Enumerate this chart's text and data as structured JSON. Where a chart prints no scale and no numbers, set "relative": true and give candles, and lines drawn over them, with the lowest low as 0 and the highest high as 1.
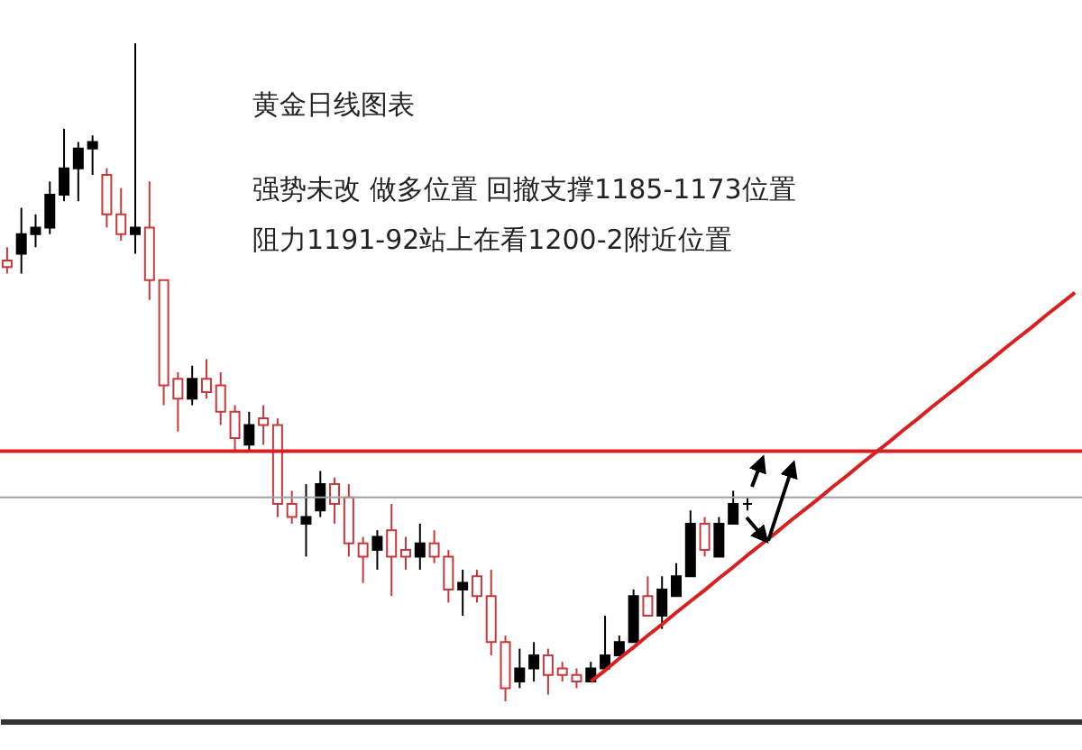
{
  "chart_data": {
    "type": "candlestick",
    "title": "黄金日线图表",
    "annotations": [
      "强势未改  做多位置 回撤支撑1185-1173位置",
      "阻力1191-92站上在看1200-2附近位置"
    ],
    "relative": true,
    "categories": [
      null,
      null,
      null,
      null,
      null,
      null,
      null,
      null,
      null,
      null,
      null,
      null,
      null,
      null,
      null,
      null,
      null,
      null,
      null,
      null,
      null,
      null,
      null,
      null,
      null,
      null,
      null,
      null,
      null,
      null,
      null,
      null,
      null,
      null,
      null,
      null,
      null,
      null,
      null,
      null,
      null,
      null,
      null,
      null,
      null,
      null,
      null,
      null,
      null,
      null,
      null,
      null,
      null,
      null,
      null,
      null,
      null,
      null,
      null,
      null,
      null,
      null,
      null,
      null,
      null,
      null,
      null,
      null,
      null,
      null,
      null,
      null,
      null,
      null,
      null,
      null
    ],
    "ohlc": [
      [
        0.67,
        0.69,
        0.65,
        0.66
      ],
      [
        0.68,
        0.75,
        0.65,
        0.71
      ],
      [
        0.71,
        0.74,
        0.69,
        0.72
      ],
      [
        0.72,
        0.79,
        0.71,
        0.77
      ],
      [
        0.77,
        0.87,
        0.76,
        0.81
      ],
      [
        0.81,
        0.85,
        0.76,
        0.84
      ],
      [
        0.84,
        0.86,
        0.8,
        0.85
      ],
      [
        0.8,
        0.81,
        0.72,
        0.74
      ],
      [
        0.74,
        0.78,
        0.7,
        0.71
      ],
      [
        0.71,
        1,
        0.68,
        0.72
      ],
      [
        0.72,
        0.79,
        0.61,
        0.64
      ],
      [
        0.64,
        0.64,
        0.45,
        0.48
      ],
      [
        0.49,
        0.5,
        0.41,
        0.46
      ],
      [
        0.46,
        0.51,
        0.45,
        0.49
      ],
      [
        0.49,
        0.52,
        0.46,
        0.47
      ],
      [
        0.48,
        0.5,
        0.42,
        0.44
      ],
      [
        0.44,
        0.45,
        0.38,
        0.4
      ],
      [
        0.39,
        0.44,
        0.38,
        0.42
      ],
      [
        0.43,
        0.45,
        0.39,
        0.42
      ],
      [
        0.42,
        0.43,
        0.28,
        0.3
      ],
      [
        0.3,
        0.32,
        0.27,
        0.28
      ],
      [
        0.27,
        0.33,
        0.22,
        0.28
      ],
      [
        0.29,
        0.35,
        0.28,
        0.33
      ],
      [
        0.33,
        0.34,
        0.27,
        0.3
      ],
      [
        0.31,
        0.33,
        0.22,
        0.24
      ],
      [
        0.24,
        0.25,
        0.18,
        0.22
      ],
      [
        0.23,
        0.26,
        0.2,
        0.25
      ],
      [
        0.26,
        0.3,
        0.16,
        0.22
      ],
      [
        0.23,
        0.25,
        0.2,
        0.22
      ],
      [
        0.22,
        0.27,
        0.2,
        0.24
      ],
      [
        0.24,
        0.26,
        0.21,
        0.22
      ],
      [
        0.22,
        0.23,
        0.15,
        0.17
      ],
      [
        0.17,
        0.2,
        0.13,
        0.18
      ],
      [
        0.19,
        0.2,
        0.15,
        0.16
      ],
      [
        0.16,
        0.2,
        0.07,
        0.09
      ],
      [
        0.09,
        0.1,
        0,
        0.02
      ],
      [
        0.03,
        0.08,
        0.02,
        0.05
      ],
      [
        0.05,
        0.09,
        0.03,
        0.07
      ],
      [
        0.07,
        0.08,
        0.01,
        0.04
      ],
      [
        0.05,
        0.06,
        0.03,
        0.04
      ],
      [
        0.04,
        0.05,
        0.02,
        0.03
      ],
      [
        0.03,
        0.06,
        0.03,
        0.05
      ],
      [
        0.05,
        0.13,
        0.05,
        0.07
      ],
      [
        0.07,
        0.1,
        0.07,
        0.09
      ],
      [
        0.09,
        0.17,
        0.09,
        0.16
      ],
      [
        0.16,
        0.19,
        0.13,
        0.13
      ],
      [
        0.13,
        0.19,
        0.11,
        0.17
      ],
      [
        0.16,
        0.21,
        0.16,
        0.19
      ],
      [
        0.19,
        0.29,
        0.19,
        0.27
      ],
      [
        0.27,
        0.28,
        0.22,
        0.23
      ],
      [
        0.22,
        0.28,
        0.22,
        0.27
      ],
      [
        0.27,
        0.32,
        0.27,
        0.3
      ],
      [
        0.3,
        0.31,
        0.29,
        0.3
      ],
      null,
      null,
      null,
      null,
      null,
      null,
      null,
      null,
      null,
      null,
      null,
      null,
      null,
      null,
      null,
      null,
      null,
      null,
      null,
      null,
      null,
      null,
      null
    ],
    "colors": [
      "#c8383a",
      "#000000",
      "#000000",
      "#000000",
      "#000000",
      "#000000",
      "#000000",
      "#c8383a",
      "#c8383a",
      "#000000",
      "#c8383a",
      "#c8383a",
      "#c8383a",
      "#000000",
      "#c8383a",
      "#c8383a",
      "#c8383a",
      "#000000",
      "#c8383a",
      "#c8383a",
      "#c8383a",
      "#000000",
      "#000000",
      "#c8383a",
      "#c8383a",
      "#c8383a",
      "#000000",
      "#c8383a",
      "#c8383a",
      "#000000",
      "#c8383a",
      "#c8383a",
      "#000000",
      "#c8383a",
      "#c8383a",
      "#c8383a",
      "#000000",
      "#000000",
      "#c8383a",
      "#c8383a",
      "#c8383a",
      "#000000",
      "#000000",
      "#000000",
      "#000000",
      "#c8383a",
      "#000000",
      "#000000",
      "#000000",
      "#c8383a",
      "#000000",
      "#000000",
      "#000000",
      null,
      null,
      null,
      null,
      null,
      null,
      null,
      null,
      null,
      null,
      null,
      null,
      null,
      null,
      null,
      null,
      null,
      null,
      null,
      null,
      null,
      null,
      null
    ],
    "series": [
      {
        "type": "line",
        "color": "#d92020",
        "values": [
          null,
          null,
          null,
          null,
          null,
          null,
          null,
          null,
          null,
          null,
          null,
          null,
          null,
          null,
          null,
          null,
          null,
          null,
          null,
          null,
          null,
          null,
          null,
          null,
          null,
          null,
          null,
          null,
          null,
          null,
          null,
          null,
          null,
          null,
          null,
          null,
          null,
          null,
          null,
          null,
          null,
          0.03,
          0.047,
          0.065,
          0.082,
          0.1,
          0.117,
          0.135,
          0.152,
          0.169,
          0.187,
          0.204,
          0.222,
          0.239,
          0.256,
          0.274,
          0.291,
          0.308,
          0.326,
          0.343,
          0.361,
          0.378,
          0.395,
          0.413,
          0.43,
          0.448,
          0.465,
          0.482,
          0.5,
          0.517,
          0.535,
          0.552,
          0.569,
          0.587,
          0.604,
          0.621
        ]
      }
    ],
    "ref_lines": [
      {
        "axis": "y",
        "value": 0.38,
        "color": "#d92020"
      },
      {
        "axis": "y",
        "value": 0.31,
        "color": "#a0a0a0"
      }
    ]
  }
}
